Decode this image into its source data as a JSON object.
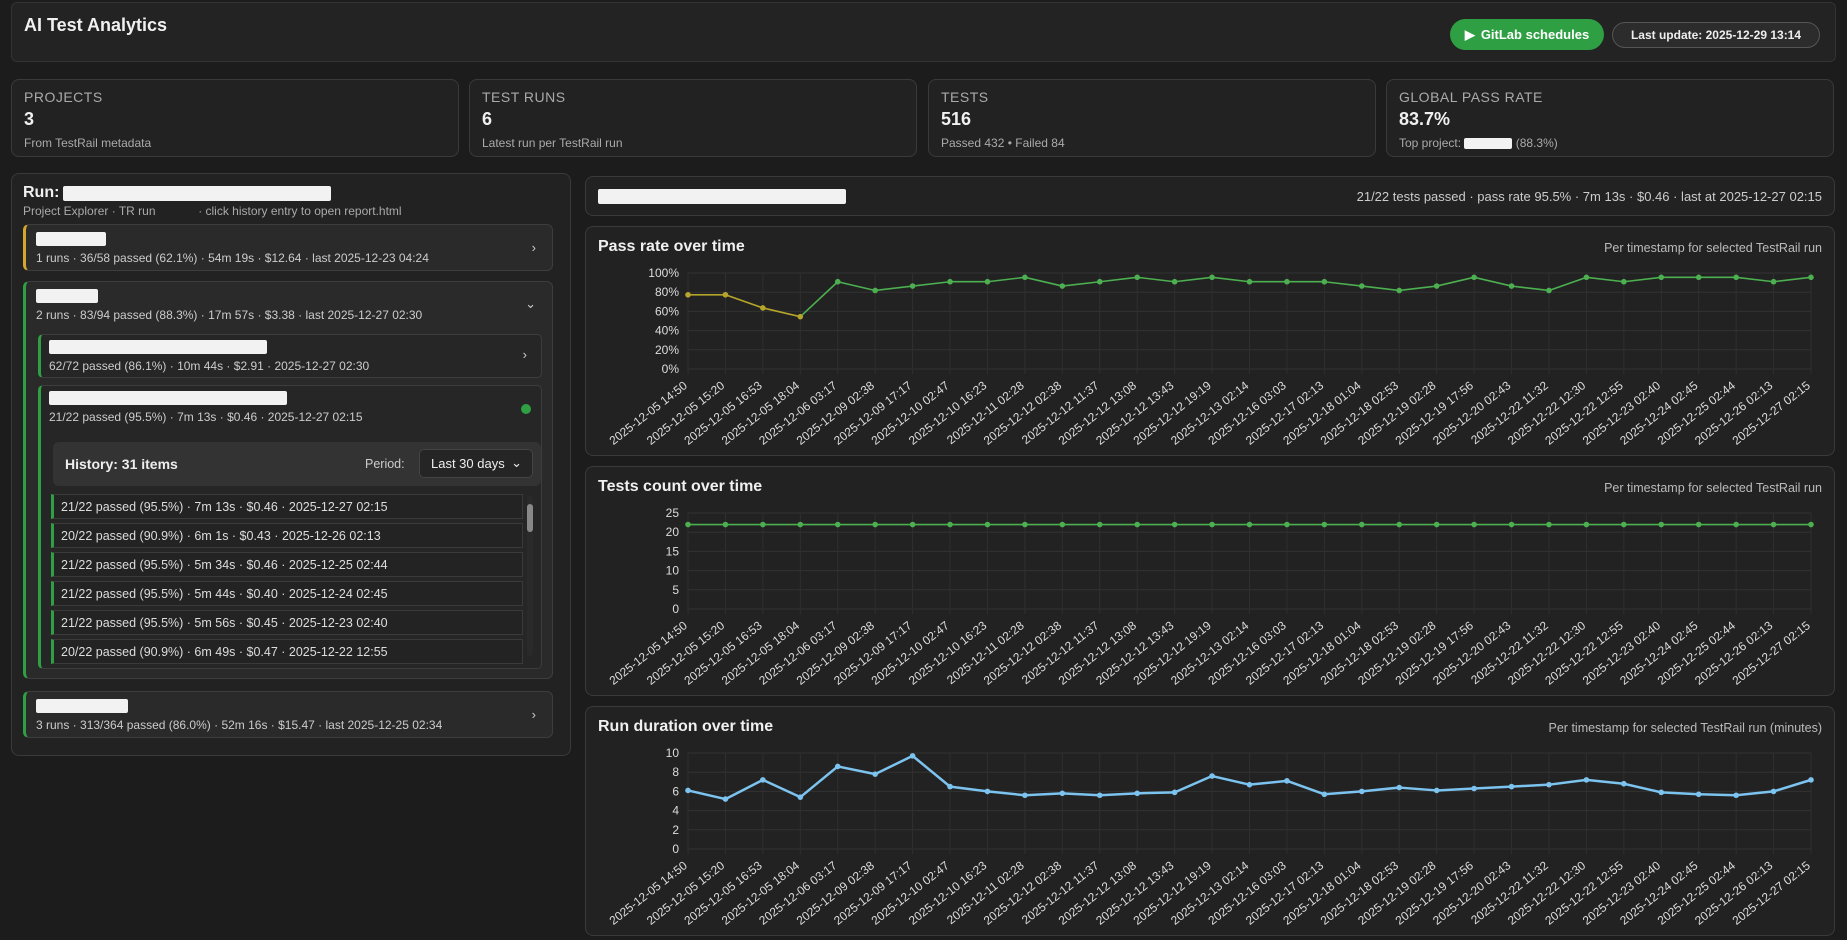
{
  "header": {
    "title": "AI Test Analytics",
    "gitlab_label": "GitLab schedules",
    "last_update": "Last update: 2025-12-29 13:14"
  },
  "stats": [
    {
      "label": "PROJECTS",
      "value": "3",
      "sub": "From TestRail metadata"
    },
    {
      "label": "TEST RUNS",
      "value": "6",
      "sub": "Latest run per TestRail run"
    },
    {
      "label": "TESTS",
      "value": "516",
      "sub": "Passed 432 • Failed 84"
    },
    {
      "label": "GLOBAL PASS RATE",
      "value": "83.7%",
      "sub_prefix": "Top project:",
      "sub_suffix": "(88.3%)"
    }
  ],
  "run_panel": {
    "title": "Run:",
    "subtitle_a": "Project Explorer · TR run",
    "subtitle_b": "· click history entry to open report.html"
  },
  "projects": [
    {
      "meta": "1 runs · 36/58 passed (62.1%) · 54m 19s · $12.64 · last 2025-12-23 04:24",
      "accent": "#d4a72c",
      "expanded": false
    },
    {
      "meta": "2 runs · 83/94 passed (88.3%) · 17m 57s · $3.38 · last 2025-12-27 02:30",
      "accent": "#2ea043",
      "expanded": true
    },
    {
      "meta": "3 runs · 313/364 passed (86.0%) · 52m 16s · $15.47 · last 2025-12-25 02:34",
      "accent": "#2ea043",
      "expanded": false
    }
  ],
  "testrail_runs": [
    {
      "meta": "62/72 passed (86.1%) · 10m 44s · $2.91 · 2025-12-27 02:30"
    },
    {
      "meta": "21/22 passed (95.5%) · 7m 13s · $0.46 · 2025-12-27 02:15"
    }
  ],
  "history": {
    "title": "History: 31 items",
    "period_label": "Period:",
    "period_value": "Last 30 days",
    "rows": [
      "21/22 passed (95.5%) · 7m 13s · $0.46 · 2025-12-27 02:15",
      "20/22 passed (90.9%) · 6m 1s · $0.43 · 2025-12-26 02:13",
      "21/22 passed (95.5%) · 5m 34s · $0.46 · 2025-12-25 02:44",
      "21/22 passed (95.5%) · 5m 44s · $0.40 · 2025-12-24 02:45",
      "21/22 passed (95.5%) · 5m 56s · $0.45 · 2025-12-23 02:40",
      "20/22 passed (90.9%) · 6m 49s · $0.47 · 2025-12-22 12:55"
    ]
  },
  "selected_summary": "21/22 tests passed · pass rate 95.5% · 7m 13s · $0.46 · last at 2025-12-27 02:15",
  "colors": {
    "green": "#2ea043",
    "line_green": "#4caf50",
    "olive": "#b5a52a",
    "blue": "#7cc3ef"
  },
  "chart_data": [
    {
      "type": "line",
      "title": "Pass rate over time",
      "note": "Per timestamp for selected TestRail run",
      "x": [
        "2025-12-05 14:50",
        "2025-12-05 15:20",
        "2025-12-05 16:53",
        "2025-12-05 18:04",
        "2025-12-06 03:17",
        "2025-12-09 02:38",
        "2025-12-09 17:17",
        "2025-12-10 02:47",
        "2025-12-10 16:23",
        "2025-12-11 02:28",
        "2025-12-12 02:38",
        "2025-12-12 11:37",
        "2025-12-12 13:08",
        "2025-12-12 13:43",
        "2025-12-12 19:19",
        "2025-12-13 02:14",
        "2025-12-16 03:03",
        "2025-12-17 02:13",
        "2025-12-18 01:04",
        "2025-12-18 02:53",
        "2025-12-19 02:28",
        "2025-12-19 17:56",
        "2025-12-20 02:43",
        "2025-12-22 11:32",
        "2025-12-22 12:30",
        "2025-12-22 12:55",
        "2025-12-23 02:40",
        "2025-12-24 02:45",
        "2025-12-25 02:44",
        "2025-12-26 02:13",
        "2025-12-27 02:15"
      ],
      "values": [
        77.3,
        77.3,
        63.6,
        54.5,
        90.9,
        81.8,
        86.4,
        90.9,
        90.9,
        95.5,
        86.4,
        90.9,
        95.5,
        90.9,
        95.5,
        90.9,
        90.9,
        90.9,
        86.4,
        81.8,
        86.4,
        95.5,
        86.4,
        81.8,
        95.5,
        90.9,
        95.5,
        95.5,
        95.5,
        90.9,
        95.5
      ],
      "ylim": [
        0,
        100
      ],
      "yticks": [
        "100%",
        "80%",
        "60%",
        "40%",
        "20%",
        "0%"
      ]
    },
    {
      "type": "line",
      "title": "Tests count over time",
      "note": "Per timestamp for selected TestRail run",
      "values": [
        22,
        22,
        22,
        22,
        22,
        22,
        22,
        22,
        22,
        22,
        22,
        22,
        22,
        22,
        22,
        22,
        22,
        22,
        22,
        22,
        22,
        22,
        22,
        22,
        22,
        22,
        22,
        22,
        22,
        22,
        22
      ],
      "ylim": [
        0,
        25
      ],
      "yticks": [
        "25",
        "20",
        "15",
        "10",
        "5",
        "0"
      ]
    },
    {
      "type": "line",
      "title": "Run duration over time",
      "note": "Per timestamp for selected TestRail run (minutes)",
      "values": [
        6.1,
        5.2,
        7.2,
        5.4,
        8.6,
        7.8,
        9.7,
        6.5,
        6.0,
        5.6,
        5.8,
        5.6,
        5.8,
        5.9,
        7.6,
        6.7,
        7.1,
        5.7,
        6.0,
        6.4,
        6.1,
        6.3,
        6.5,
        6.7,
        7.2,
        6.8,
        5.9,
        5.7,
        5.6,
        6.0,
        7.2
      ],
      "ylim": [
        0,
        10
      ],
      "yticks": [
        "10",
        "8",
        "6",
        "4",
        "2",
        "0"
      ]
    }
  ]
}
